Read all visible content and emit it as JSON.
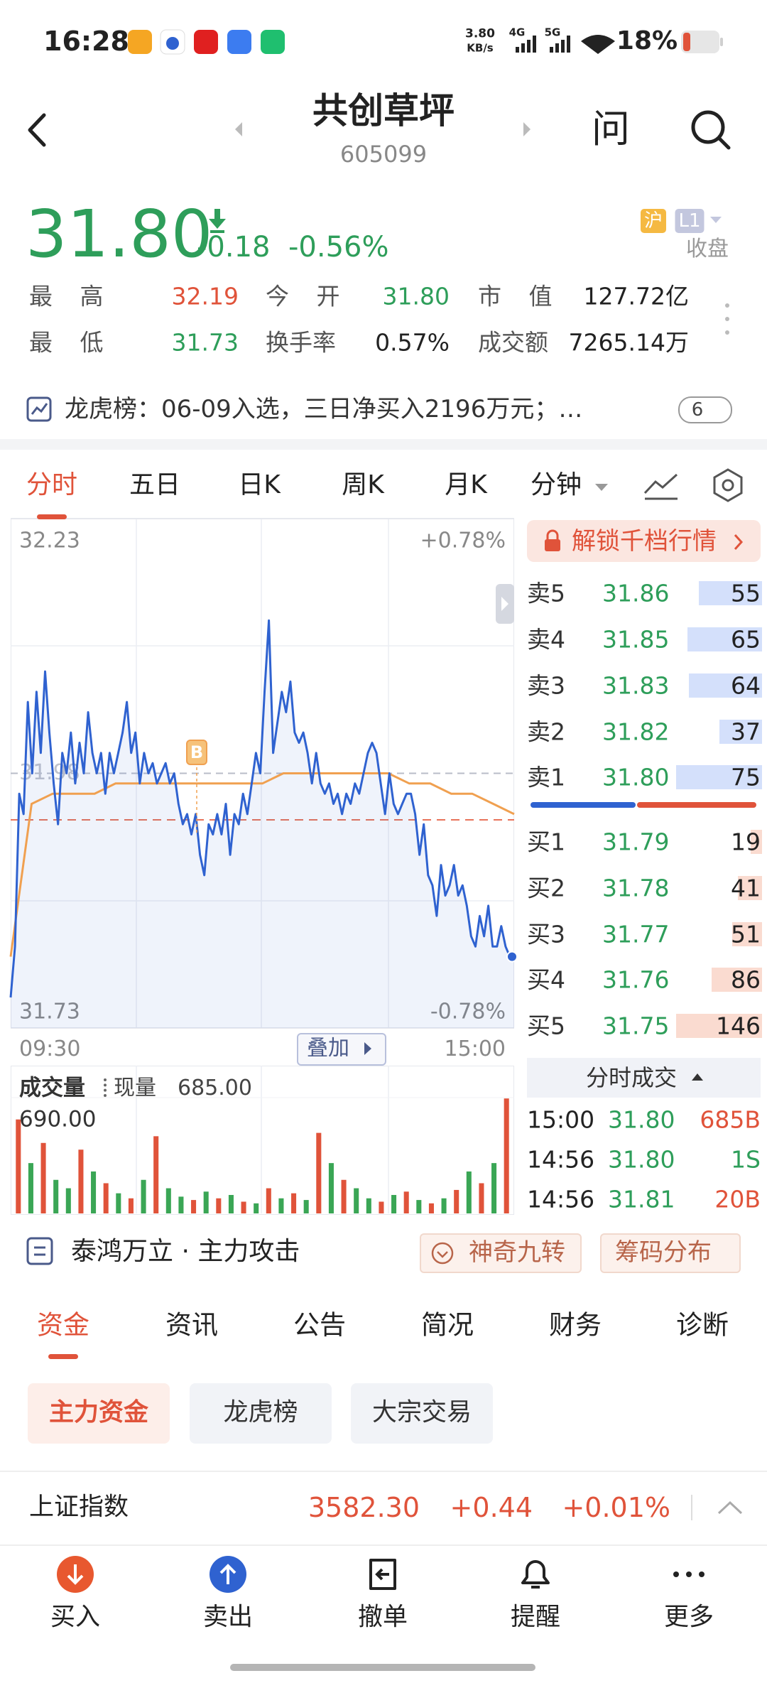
{
  "status_bar": {
    "time": "16:28",
    "net_speed": "3.80",
    "net_speed_unit": "KB/s",
    "signal_1": "4G",
    "signal_2": "5G",
    "battery": "18%"
  },
  "header": {
    "title": "共创草坪",
    "code": "605099",
    "ask": "问"
  },
  "quote": {
    "price": "31.80",
    "change": "-0.18",
    "change_pct": "-0.56%",
    "exchange": "沪",
    "level": "L1",
    "status": "收盘",
    "stats": [
      {
        "label": "最 高",
        "value": "32.19",
        "color": "#e0533a"
      },
      {
        "label": "今 开",
        "value": "31.80",
        "color": "#2e9e5a"
      },
      {
        "label": "市 值",
        "value": "127.72亿",
        "color": "#222222"
      },
      {
        "label": "最 低",
        "value": "31.73",
        "color": "#2e9e5a"
      },
      {
        "label": "换手率",
        "value": "0.57%",
        "color": "#222222"
      },
      {
        "label": "成交额",
        "value": "7265.14万",
        "color": "#222222"
      }
    ]
  },
  "dragon": {
    "text": "龙虎榜：06-09入选，三日净买入2196万元；…",
    "count": "6"
  },
  "chart_tabs": [
    "分时",
    "五日",
    "日K",
    "周K",
    "月K",
    "分钟"
  ],
  "intraday": {
    "type": "line",
    "ylim": [
      31.73,
      32.23
    ],
    "yticks": [
      31.73,
      31.98,
      32.23
    ],
    "y2lim": [
      -0.78,
      0.78
    ],
    "y2ticks": [
      {
        "value": 0.78,
        "label": "+0.78%"
      },
      {
        "value": -0.78,
        "label": "-0.78%"
      }
    ],
    "x_labels": [
      "09:30",
      "15:00"
    ],
    "overlay": "叠加",
    "buy_marker": "B",
    "price": {
      "color": "#2f62d0",
      "values": [
        31.76,
        31.81,
        31.96,
        31.94,
        32.05,
        31.98,
        32.06,
        32.0,
        32.08,
        32.02,
        31.97,
        31.93,
        32.0,
        31.98,
        32.02,
        31.97,
        32.01,
        31.98,
        32.04,
        32.0,
        31.98,
        32.0,
        31.96,
        32.0,
        31.98,
        32.0,
        32.02,
        32.05,
        32.0,
        32.02,
        31.97,
        32.0,
        31.98,
        31.99,
        31.97,
        31.98,
        31.99,
        31.97,
        31.98,
        31.95,
        31.93,
        31.94,
        31.92,
        31.94,
        31.9,
        31.88,
        31.93,
        31.92,
        31.94,
        31.92,
        31.95,
        31.9,
        31.94,
        31.93,
        31.96,
        31.94,
        31.97,
        32.0,
        31.98,
        32.06,
        32.13,
        32.0,
        32.03,
        32.06,
        32.04,
        32.07,
        32.02,
        32.01,
        32.02,
        32.0,
        31.97,
        32.0,
        31.97,
        31.96,
        31.97,
        31.95,
        31.96,
        31.94,
        31.96,
        31.95,
        31.97,
        31.96,
        31.98,
        32.0,
        32.01,
        32.0,
        31.97,
        31.94,
        31.98,
        31.95,
        31.94,
        31.95,
        31.96,
        31.96,
        31.94,
        31.9,
        31.93,
        31.88,
        31.87,
        31.84,
        31.89,
        31.86,
        31.87,
        31.89,
        31.86,
        31.87,
        31.85,
        31.82,
        31.81,
        31.84,
        31.82,
        31.85,
        31.81,
        31.81,
        31.83,
        31.81,
        31.8,
        31.8
      ]
    },
    "average": {
      "color": "#f0a050",
      "values": [
        31.8,
        31.95,
        31.96,
        31.96,
        31.96,
        31.97,
        31.97,
        31.97,
        31.97,
        31.97,
        31.97,
        31.97,
        31.97,
        31.98,
        31.98,
        31.98,
        31.98,
        31.98,
        31.98,
        31.97,
        31.97,
        31.96,
        31.96,
        31.95,
        31.94
      ]
    }
  },
  "volume": {
    "title": "成交量",
    "current_label": "现量",
    "current": "685.00",
    "ylim": [
      0,
      690
    ],
    "yticks": [
      {
        "value": 690,
        "label": "690.00"
      }
    ],
    "values": [
      560,
      300,
      420,
      200,
      150,
      380,
      250,
      180,
      120,
      90,
      200,
      460,
      150,
      100,
      80,
      130,
      90,
      110,
      70,
      60,
      150,
      90,
      120,
      80,
      480,
      300,
      200,
      150,
      90,
      70,
      110,
      130,
      80,
      60,
      90,
      140,
      250,
      180,
      300,
      685
    ],
    "colors": [
      "#e0533a",
      "#3aa655",
      "#e0533a",
      "#3aa655",
      "#3aa655",
      "#e0533a",
      "#3aa655",
      "#e0533a",
      "#3aa655",
      "#e0533a",
      "#3aa655",
      "#e0533a",
      "#3aa655",
      "#3aa655",
      "#e0533a",
      "#3aa655",
      "#e0533a",
      "#3aa655",
      "#e0533a",
      "#3aa655",
      "#e0533a",
      "#3aa655",
      "#e0533a",
      "#3aa655",
      "#e0533a",
      "#3aa655",
      "#e0533a",
      "#3aa655",
      "#3aa655",
      "#e0533a",
      "#3aa655",
      "#e0533a",
      "#3aa655",
      "#e0533a",
      "#3aa655",
      "#e0533a",
      "#3aa655",
      "#e0533a",
      "#3aa655",
      "#e0533a"
    ]
  },
  "order_book": {
    "unlock": "解锁千档行情",
    "asks": [
      {
        "label": "卖5",
        "price": "31.86",
        "volume": 55
      },
      {
        "label": "卖4",
        "price": "31.85",
        "volume": 65
      },
      {
        "label": "卖3",
        "price": "31.83",
        "volume": 64
      },
      {
        "label": "卖2",
        "price": "31.82",
        "volume": 37
      },
      {
        "label": "卖1",
        "price": "31.80",
        "volume": 75
      }
    ],
    "bids": [
      {
        "label": "买1",
        "price": "31.79",
        "volume": 19
      },
      {
        "label": "买2",
        "price": "31.78",
        "volume": 41
      },
      {
        "label": "买3",
        "price": "31.77",
        "volume": 51
      },
      {
        "label": "买4",
        "price": "31.76",
        "volume": 86
      },
      {
        "label": "买5",
        "price": "31.75",
        "volume": 146
      }
    ]
  },
  "trades": {
    "title": "分时成交",
    "rows": [
      {
        "time": "15:00",
        "price": "31.80",
        "volume": "685B",
        "color": "#e0533a"
      },
      {
        "time": "14:56",
        "price": "31.80",
        "volume": "1S",
        "color": "#2e9e5a"
      },
      {
        "time": "14:56",
        "price": "31.81",
        "volume": "20B",
        "color": "#e0533a"
      }
    ]
  },
  "strategy": {
    "name": "泰鸿万立 · 主力攻击",
    "buttons": [
      "神奇九转",
      "筹码分布"
    ]
  },
  "info_tabs": [
    "资金",
    "资讯",
    "公告",
    "简况",
    "财务",
    "诊断"
  ],
  "sub_tabs": [
    "主力资金",
    "龙虎榜",
    "大宗交易"
  ],
  "index": {
    "name": "上证指数",
    "value": "3582.30",
    "change": "+0.44",
    "change_pct": "+0.01%"
  },
  "nav": [
    "买入",
    "卖出",
    "撤单",
    "提醒",
    "更多"
  ]
}
